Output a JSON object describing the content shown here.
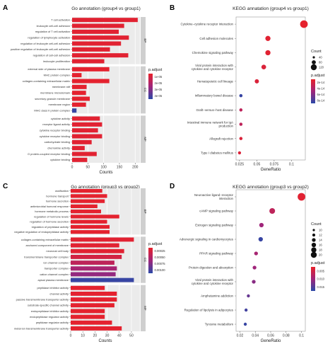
{
  "chart_data": [
    {
      "panel": "A",
      "type": "bar",
      "title": "Go annotation (group4 vs group1)",
      "xlabel": "Counts",
      "xlim": [
        0,
        215
      ],
      "xticks": [
        0,
        50,
        100,
        150,
        200
      ],
      "legend": {
        "title": "p.adjust",
        "ticks": [
          "1e-05",
          "2e-05",
          "3e-05",
          "4e-05"
        ],
        "placement": "right"
      },
      "groups": [
        {
          "name": "BP",
          "categories": [
            "T cell activation",
            "leukocyte cell-cell adhesion",
            "regulation of T cell activation",
            "regulation of lymphocyte activation",
            "regulation of leukocyte cell-cell adhesion",
            "positive regulation of leukocyte cell-cell adhesion",
            "regulation of cell-cell adhesion",
            "leukocyte proliferation"
          ],
          "values": [
            208,
            165,
            148,
            180,
            155,
            120,
            178,
            102
          ],
          "padj": [
            0.05,
            0.05,
            0.05,
            0.05,
            0.05,
            0.05,
            0.05,
            0.05
          ]
        },
        {
          "name": "CC",
          "categories": [
            "external side of plasma membrane",
            "MHC protein complex",
            "collagen-containing extracellular matrix",
            "membrane raft",
            "membrane microdomain",
            "secretory granule membrane",
            "membrane region",
            "MHC class II protein complex"
          ],
          "values": [
            118,
            30,
            118,
            46,
            44,
            56,
            44,
            14
          ],
          "padj": [
            0.03,
            0.03,
            0.03,
            0.03,
            0.03,
            0.03,
            0.03,
            0.95
          ]
        },
        {
          "name": "MF",
          "categories": [
            "cytokine activity",
            "receptor ligand activity",
            "cytokine receptor binding",
            "cytokine receptor binding",
            "carbohydrate binding",
            "chemokine activity",
            "G protein-coupled receptor binding",
            "cytokine binding"
          ],
          "values": [
            88,
            95,
            82,
            95,
            62,
            40,
            78,
            48
          ],
          "padj": [
            0.05,
            0.05,
            0.05,
            0.05,
            0.05,
            0.05,
            0.05,
            0.05
          ]
        }
      ]
    },
    {
      "panel": "B",
      "type": "scatter",
      "title": "KEGG annatation (group4 vs group1)",
      "xlabel": "GeneRatio",
      "xlim": [
        0.02,
        0.12
      ],
      "xticks": [
        0.025,
        0.05,
        0.075,
        0.1
      ],
      "categories": [
        "Cytokine−cytokine receptor interaction",
        "Cell adhesion molecules",
        "Chemokine signaling pathway",
        "Viral protein interaction with cytokine and cytokine receptor",
        "Hematopoietic cell lineage",
        "Inflammatory bowel disease",
        "Graft−versus−host disease",
        "Intestinal immune network for IgA production",
        "Allograft rejection",
        "Type I diabetes mellitus"
      ],
      "x": [
        0.118,
        0.066,
        0.066,
        0.06,
        0.05,
        0.027,
        0.027,
        0.027,
        0.027,
        0.025
      ],
      "count": [
        110,
        60,
        60,
        50,
        40,
        20,
        20,
        20,
        20,
        18
      ],
      "padj": [
        0.02,
        0.05,
        0.05,
        0.1,
        0.1,
        0.95,
        0.3,
        0.3,
        0.1,
        0.1
      ],
      "legend": {
        "count_title": "Count",
        "count_ticks": [
          "40",
          "80",
          "120"
        ],
        "padj_title": "p.adjust",
        "padj_ticks": [
          "2e-14",
          "4e-14",
          "6e-14",
          "8e-14"
        ]
      }
    },
    {
      "panel": "C",
      "type": "bar",
      "title": "Go annotation (group3 vs group2)",
      "xlabel": "Counts",
      "xlim": [
        0,
        57
      ],
      "xticks": [
        0,
        10,
        20,
        30,
        40,
        50
      ],
      "legend": {
        "title": "p.adjust",
        "ticks": [
          "0.00025",
          "0.00050",
          "0.00075",
          "0.00100"
        ],
        "placement": "right"
      },
      "groups": [
        {
          "name": "BP",
          "categories": [
            "ossification",
            "hormone transport",
            "hormone secretion",
            "antimicrobial humoral response",
            "hormone metabolic process",
            "regulation of hormone levels",
            "regulation of hormone secretion",
            "regulation of peptidase activity",
            "negative regulation of endopeptidase activity"
          ],
          "values": [
            26,
            30,
            28,
            22,
            25,
            40,
            30,
            32,
            32
          ],
          "padj": [
            0.03,
            0.03,
            0.03,
            0.03,
            0.03,
            0.03,
            0.03,
            0.03,
            0.03
          ]
        },
        {
          "name": "CC",
          "categories": [
            "collagen-containing extracellular matrix",
            "anchored component of membrane",
            "neuronal cell body",
            "transmembrane transporter complex",
            "ion channel complex",
            "transporter complex",
            "cation channel complex",
            "apical plasma membrane"
          ],
          "values": [
            52,
            40,
            44,
            42,
            36,
            38,
            37,
            52
          ],
          "padj": [
            0.05,
            0.05,
            0.05,
            0.15,
            0.3,
            0.45,
            0.55,
            0.95
          ]
        },
        {
          "name": "MF",
          "categories": [
            "peptidase inhibitor activity",
            "channel activity",
            "passive transmembrane transporter activity",
            "substrate-specific channel activity",
            "endopeptidase inhibitor activity",
            "endopeptidase regulator activity",
            "peptidase regulator activity",
            "metal ion transmembrane transporter activity"
          ],
          "values": [
            28,
            38,
            38,
            36,
            28,
            28,
            34,
            42
          ],
          "padj": [
            0.03,
            0.03,
            0.03,
            0.03,
            0.03,
            0.03,
            0.03,
            0.03
          ]
        }
      ]
    },
    {
      "panel": "D",
      "type": "scatter",
      "title": "KEGG annotation (group3 vs group2)",
      "xlabel": "GeneRatio",
      "xlim": [
        0.015,
        0.105
      ],
      "xticks": [
        0.02,
        0.04,
        0.06,
        0.08,
        0.1
      ],
      "categories": [
        "Neuroactive ligand−receptor interaction",
        "cAMP signaling pathway",
        "Estrogen signaling pathway",
        "Adrenergic signaling in cardiomyocytes",
        "PPAR signaling pathway",
        "Protein digestion and absorption",
        "Viral protein interaction with cytokine and cytokine receptor",
        "Amphetamine addiction",
        "Regulation of lipolysis in adipocytes",
        "Tyrosine metabolism"
      ],
      "x": [
        0.1,
        0.062,
        0.048,
        0.047,
        0.041,
        0.039,
        0.038,
        0.031,
        0.028,
        0.027
      ],
      "count": [
        20,
        14,
        10,
        10,
        8,
        8,
        8,
        6,
        6,
        6
      ],
      "padj": [
        0.05,
        0.3,
        0.5,
        0.95,
        0.45,
        0.5,
        0.6,
        0.75,
        0.9,
        0.95
      ],
      "legend": {
        "count_title": "Count",
        "count_ticks": [
          "10",
          "12",
          "14",
          "16",
          "18",
          "20"
        ],
        "padj_title": "p.adjust",
        "padj_ticks": [
          "0.005",
          "0.010",
          "0.015"
        ]
      }
    }
  ]
}
